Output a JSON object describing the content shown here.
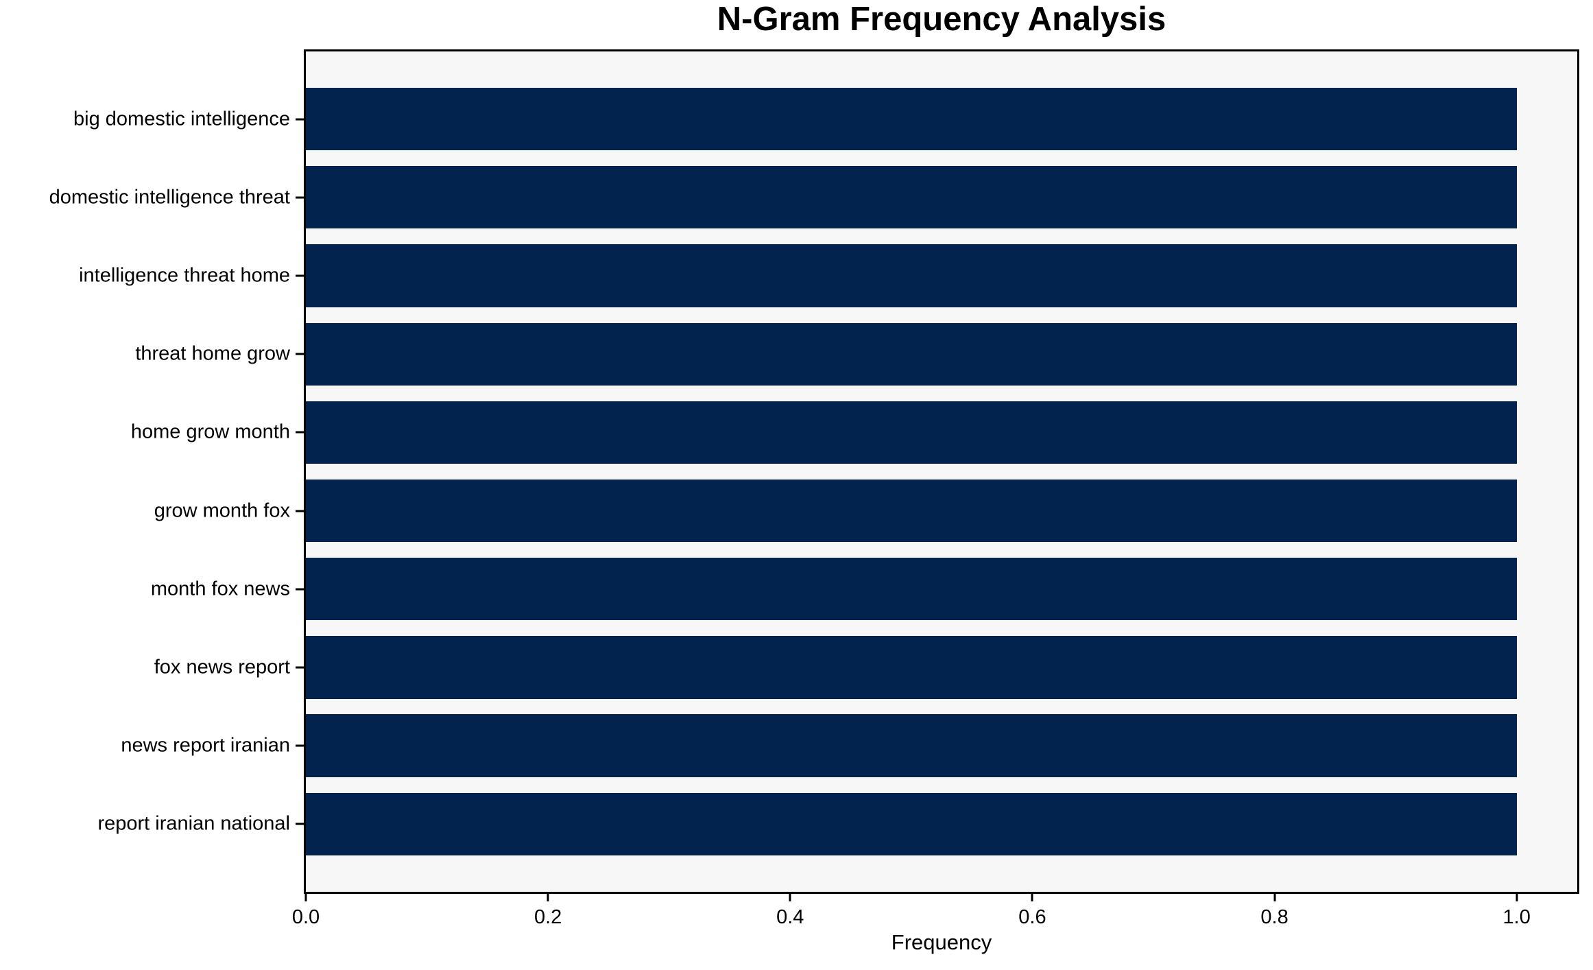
{
  "chart_data": {
    "type": "bar",
    "orientation": "horizontal",
    "title": "N-Gram Frequency Analysis",
    "xlabel": "Frequency",
    "ylabel": "",
    "categories": [
      "big domestic intelligence",
      "domestic intelligence threat",
      "intelligence threat home",
      "threat home grow",
      "home grow month",
      "grow month fox",
      "month fox news",
      "fox news report",
      "news report iranian",
      "report iranian national"
    ],
    "values": [
      1.0,
      1.0,
      1.0,
      1.0,
      1.0,
      1.0,
      1.0,
      1.0,
      1.0,
      1.0
    ],
    "xlim": [
      0,
      1.05
    ],
    "xticks": [
      0.0,
      0.2,
      0.4,
      0.6,
      0.8,
      1.0
    ],
    "xtick_labels": [
      "0.0",
      "0.2",
      "0.4",
      "0.6",
      "0.8",
      "1.0"
    ],
    "grid": false,
    "legend": null,
    "colors": {
      "bar": "#02234d",
      "plot_background": "#f7f7f7",
      "figure_background": "#ffffff",
      "spine": "#000000",
      "text": "#000000"
    }
  }
}
